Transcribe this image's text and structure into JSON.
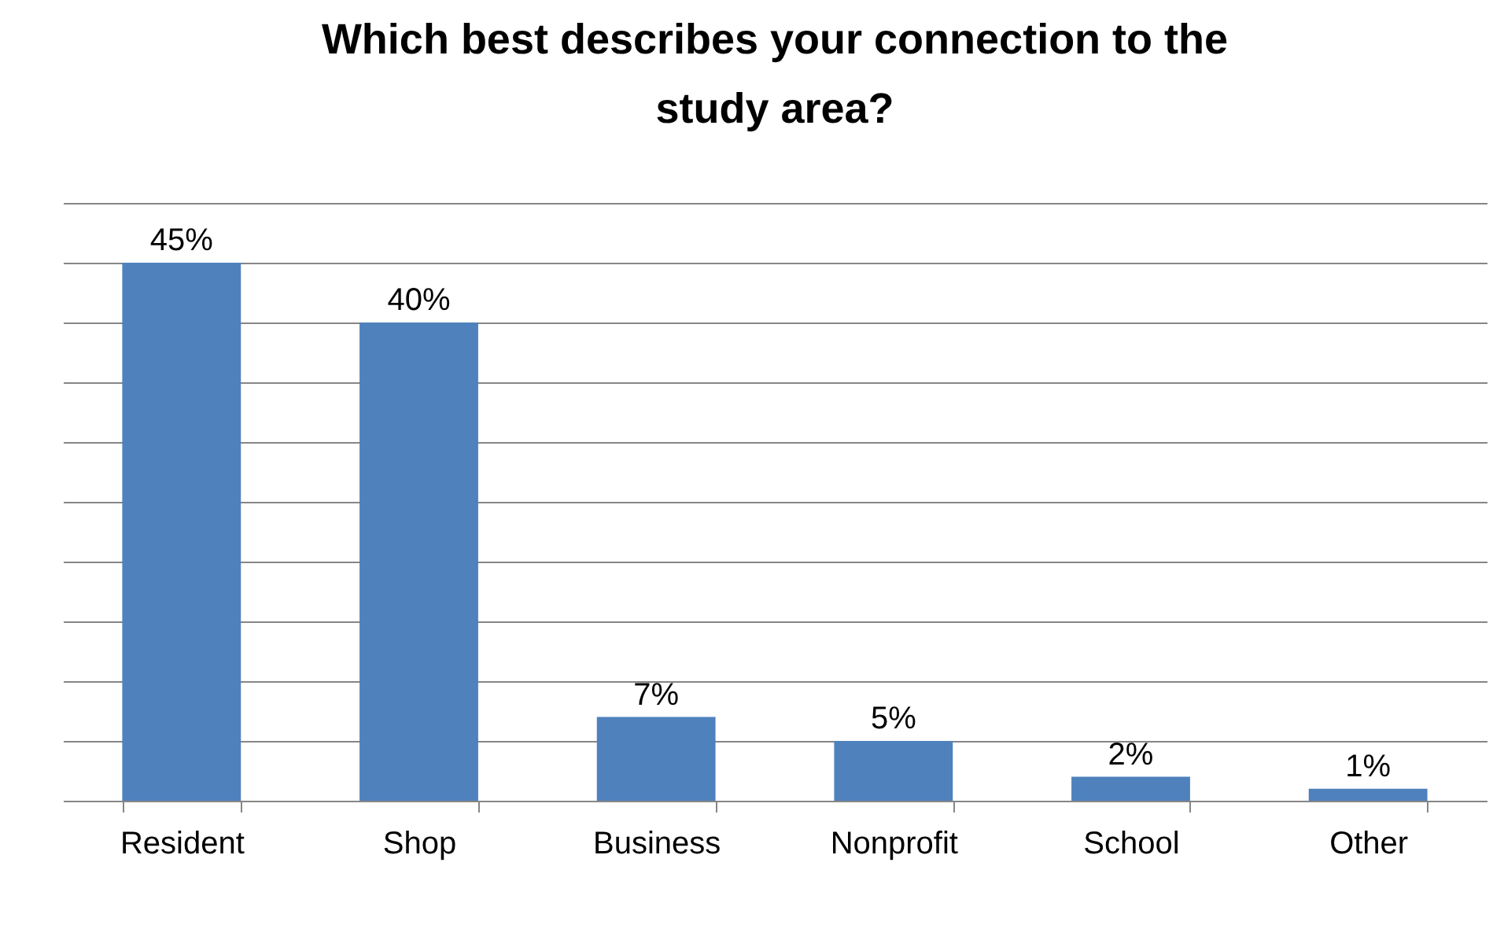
{
  "chart_data": {
    "type": "bar",
    "title": "Which best describes your connection to the study area?",
    "categories": [
      "Resident",
      "Shop",
      "Business",
      "Nonprofit",
      "School",
      "Other"
    ],
    "values": [
      45,
      40,
      7,
      5,
      2,
      1
    ],
    "value_labels": [
      "45%",
      "40%",
      "7%",
      "5%",
      "2%",
      "1%"
    ],
    "color": "#4f81bd",
    "ylim": [
      0,
      50
    ],
    "yticks": [
      0,
      5,
      10,
      15,
      20,
      25,
      30,
      35,
      40,
      45,
      50
    ],
    "grid": "y",
    "tick_labels": "x"
  }
}
